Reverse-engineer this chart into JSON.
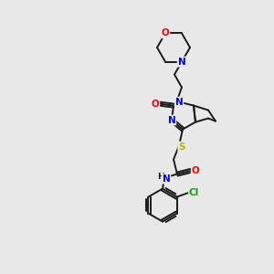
{
  "background_color": "#e8e8e8",
  "bond_color": "#1a1a1a",
  "atom_colors": {
    "N": "#0000ff",
    "O": "#ff0000",
    "S": "#b8b800",
    "Cl": "#00aa00",
    "C": "#1a1a1a",
    "H": "#1a1a1a"
  },
  "figsize": [
    3.0,
    3.0
  ],
  "dpi": 100
}
